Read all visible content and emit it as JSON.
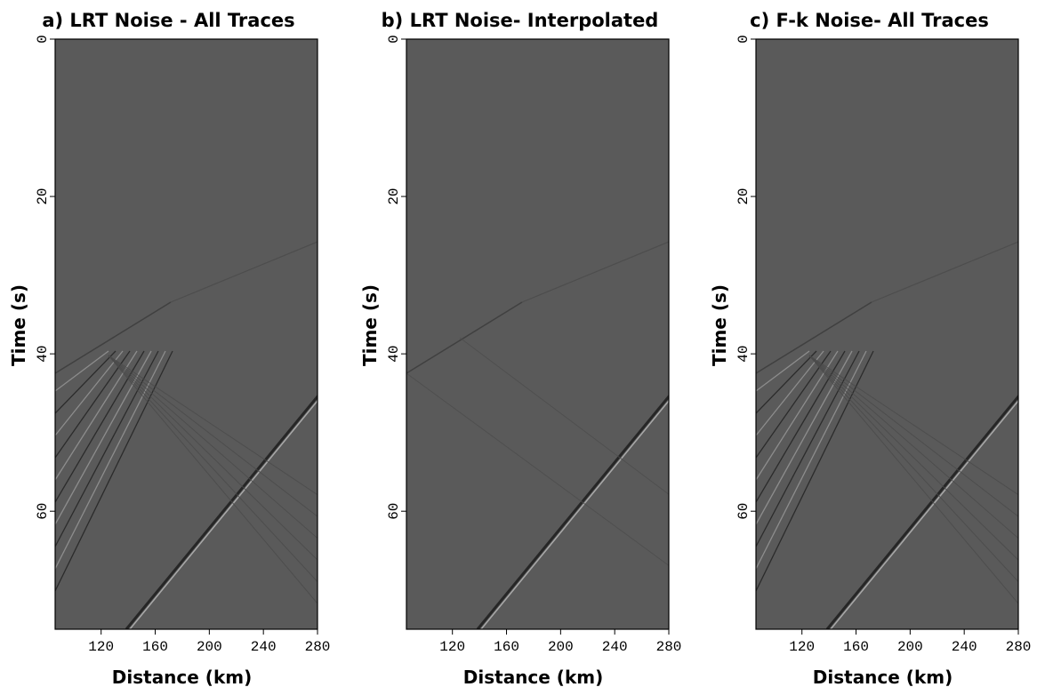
{
  "chart_data": [
    {
      "type": "image",
      "title": "a) LRT Noise - All Traces",
      "x_label": "Distance (km)",
      "y_label": "Time (s)",
      "xlim": [
        86,
        280
      ],
      "xticks": [
        120,
        160,
        200,
        240,
        280
      ],
      "ylim": [
        75,
        0
      ],
      "yticks": [
        0,
        20,
        40,
        60
      ],
      "color": "#5a5a5a"
    },
    {
      "type": "image",
      "title": "b) LRT Noise- Interpolated",
      "x_label": "Distance (km)",
      "y_label": "Time (s)",
      "xlim": [
        86,
        280
      ],
      "xticks": [
        120,
        160,
        200,
        240,
        280
      ],
      "ylim": [
        75,
        0
      ],
      "yticks": [
        0,
        20,
        40,
        60
      ],
      "color": "#5a5a5a"
    },
    {
      "type": "image",
      "title": "c) F-k Noise- All Traces",
      "x_label": "Distance (km)",
      "y_label": "Time (s)",
      "xlim": [
        86,
        280
      ],
      "xticks": [
        120,
        160,
        200,
        240,
        280
      ],
      "ylim": [
        75,
        0
      ],
      "yticks": [
        0,
        20,
        40,
        60
      ],
      "color": "#5a5a5a"
    }
  ]
}
